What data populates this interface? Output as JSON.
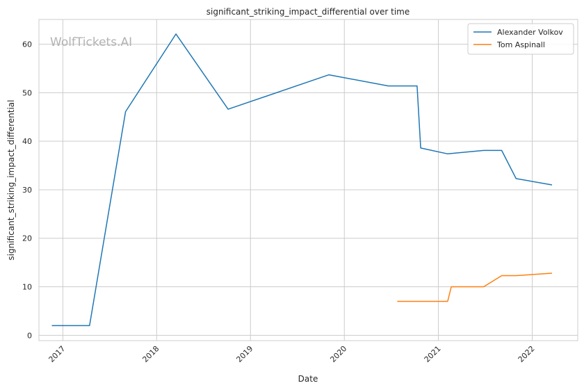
{
  "chart_data": {
    "type": "line",
    "title": "significant_striking_impact_differential over time",
    "xlabel": "Date",
    "ylabel": "significant_striking_impact_differential",
    "x_ticks": [
      "2017",
      "2018",
      "2019",
      "2020",
      "2021",
      "2022"
    ],
    "y_ticks": [
      0,
      10,
      20,
      30,
      40,
      50,
      60
    ],
    "ylim": [
      -1.1,
      65.1
    ],
    "xlim": [
      "2016-09-30",
      "2022-06-27"
    ],
    "grid": true,
    "legend_position": "top-right",
    "watermark": "WolfTickets.AI",
    "series": [
      {
        "name": "Alexander Volkov",
        "color": "#1f77b4",
        "points": [
          {
            "x": "2016-11-19",
            "y": 2
          },
          {
            "x": "2017-04-15",
            "y": 2
          },
          {
            "x": "2017-09-02",
            "y": 46.1
          },
          {
            "x": "2018-03-17",
            "y": 62.1
          },
          {
            "x": "2018-10-06",
            "y": 46.6
          },
          {
            "x": "2019-11-02",
            "y": 53.7
          },
          {
            "x": "2020-06-20",
            "y": 51.4
          },
          {
            "x": "2020-10-10",
            "y": 51.4
          },
          {
            "x": "2020-10-24",
            "y": 38.6
          },
          {
            "x": "2021-02-06",
            "y": 37.4
          },
          {
            "x": "2021-06-26",
            "y": 38.1
          },
          {
            "x": "2021-09-04",
            "y": 38.1
          },
          {
            "x": "2021-10-30",
            "y": 32.3
          },
          {
            "x": "2022-03-19",
            "y": 31.0
          }
        ]
      },
      {
        "name": "Tom Aspinall",
        "color": "#ff7f0e",
        "points": [
          {
            "x": "2020-07-25",
            "y": 7.0
          },
          {
            "x": "2021-02-06",
            "y": 7.0
          },
          {
            "x": "2021-02-20",
            "y": 10.0
          },
          {
            "x": "2021-06-26",
            "y": 10.0
          },
          {
            "x": "2021-09-04",
            "y": 12.3
          },
          {
            "x": "2021-10-30",
            "y": 12.3
          },
          {
            "x": "2022-03-19",
            "y": 12.8
          }
        ]
      }
    ]
  }
}
